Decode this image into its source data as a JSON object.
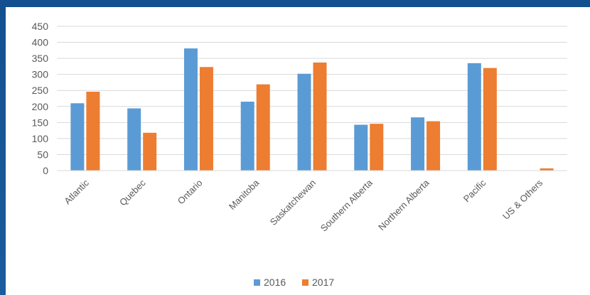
{
  "chart_data": {
    "type": "bar",
    "categories": [
      "Atlantic",
      "Quebec",
      "Ontario",
      "Manitoba",
      "Saskatchewan",
      "Southern Alberta",
      "Northern Alberta",
      "Pacific",
      "US & Others"
    ],
    "series": [
      {
        "name": "2016",
        "color": "#5b9bd5",
        "values": [
          210,
          194,
          381,
          215,
          302,
          143,
          166,
          335,
          0
        ]
      },
      {
        "name": "2017",
        "color": "#ed7d31",
        "values": [
          246,
          118,
          323,
          269,
          337,
          146,
          154,
          320,
          7
        ]
      }
    ],
    "ylim": [
      0,
      450
    ],
    "yticks": [
      "0",
      "50",
      "100",
      "150",
      "200",
      "250",
      "300",
      "350",
      "400",
      "450"
    ],
    "grid": true,
    "legend_position": "bottom"
  }
}
